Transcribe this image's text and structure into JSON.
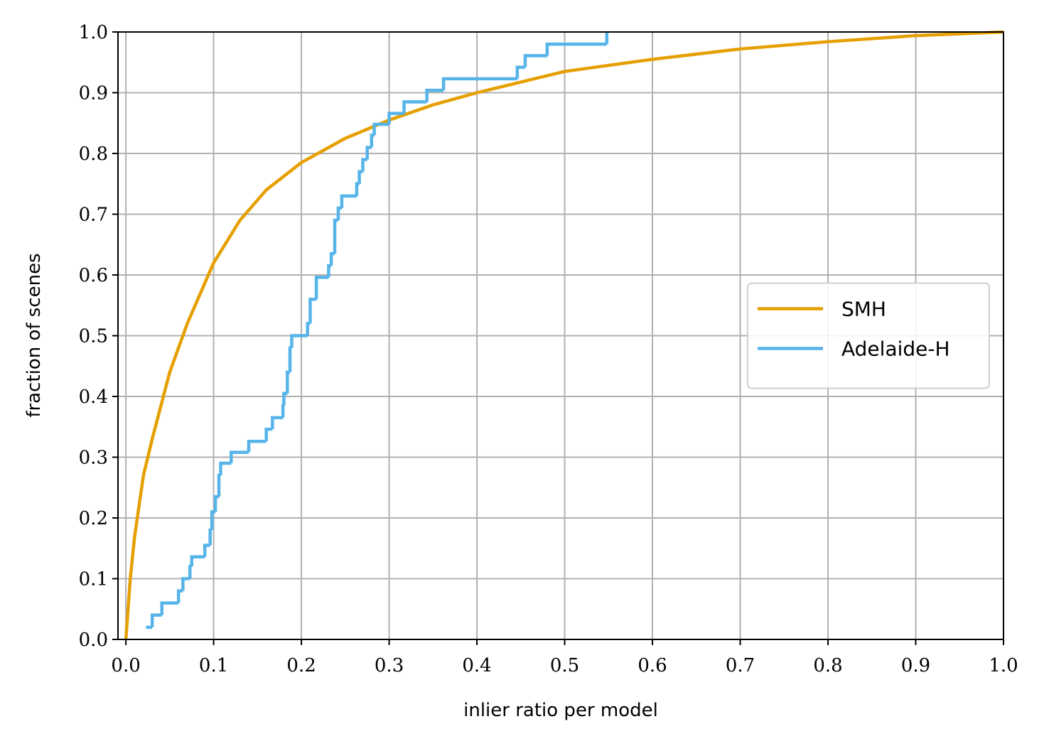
{
  "chart_data": {
    "type": "line",
    "xlabel": "inlier ratio per model",
    "ylabel": "fraction of scenes",
    "xlim": [
      -0.009,
      1.0
    ],
    "ylim": [
      0,
      1.0
    ],
    "xticks": [
      {
        "value": 0,
        "label": "0.0"
      },
      0.1,
      0.2,
      0.3,
      0.4,
      0.5,
      0.6,
      0.7,
      0.8,
      0.9,
      {
        "value": 1,
        "label": "1.0"
      }
    ],
    "yticks": [
      {
        "value": 0,
        "label": "0.0"
      },
      0.1,
      0.2,
      0.3,
      0.4,
      0.5,
      0.6,
      0.7,
      0.8,
      0.9,
      {
        "value": 1,
        "label": "1.0"
      }
    ],
    "grid": true,
    "legend": "center right",
    "series": [
      {
        "name": "SMH",
        "color": "#e69f00",
        "step": false,
        "x": [
          0,
          0.005,
          0.01,
          0.02,
          0.03,
          0.05,
          0.07,
          0.1,
          0.13,
          0.16,
          0.2,
          0.25,
          0.3,
          0.35,
          0.4,
          0.5,
          0.6,
          0.7,
          0.8,
          0.9,
          1.0
        ],
        "values": [
          0,
          0.1,
          0.17,
          0.27,
          0.33,
          0.44,
          0.52,
          0.62,
          0.69,
          0.74,
          0.785,
          0.825,
          0.855,
          0.88,
          0.9,
          0.935,
          0.955,
          0.972,
          0.984,
          0.994,
          1.0
        ]
      },
      {
        "name": "Adelaide-H",
        "color": "#56b4e9",
        "step": true,
        "x": [
          0.023,
          0.03,
          0.041,
          0.06,
          0.065,
          0.073,
          0.075,
          0.09,
          0.096,
          0.098,
          0.102,
          0.106,
          0.108,
          0.12,
          0.14,
          0.16,
          0.167,
          0.179,
          0.18,
          0.184,
          0.187,
          0.189,
          0.207,
          0.21,
          0.217,
          0.231,
          0.234,
          0.238,
          0.242,
          0.246,
          0.263,
          0.266,
          0.27,
          0.275,
          0.28,
          0.283,
          0.3,
          0.317,
          0.343,
          0.362,
          0.446,
          0.455,
          0.48,
          0.548
        ],
        "values": [
          0.02,
          0.04,
          0.06,
          0.08,
          0.1,
          0.12,
          0.136,
          0.155,
          0.18,
          0.21,
          0.235,
          0.27,
          0.29,
          0.308,
          0.326,
          0.346,
          0.365,
          0.385,
          0.405,
          0.44,
          0.48,
          0.5,
          0.52,
          0.56,
          0.596,
          0.615,
          0.635,
          0.69,
          0.71,
          0.73,
          0.75,
          0.77,
          0.79,
          0.81,
          0.83,
          0.848,
          0.866,
          0.885,
          0.904,
          0.923,
          0.942,
          0.961,
          0.98,
          1.0
        ]
      }
    ]
  }
}
